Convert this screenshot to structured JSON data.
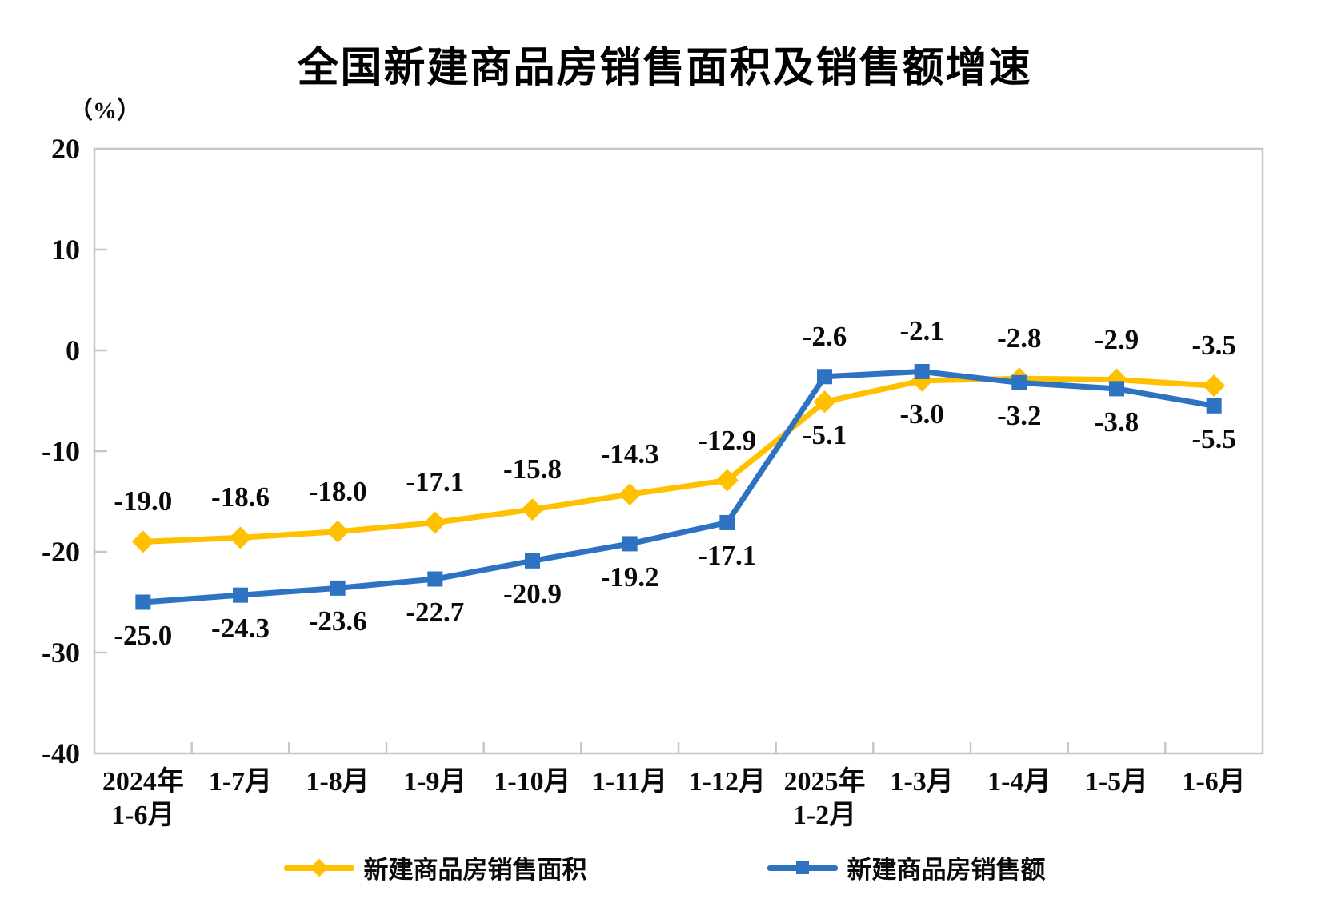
{
  "chart_data": {
    "type": "line",
    "title": "全国新建商品房销售面积及销售额增速",
    "unit_label": "（%）",
    "categories": [
      "2024年\n1-6月",
      "1-7月",
      "1-8月",
      "1-9月",
      "1-10月",
      "1-11月",
      "1-12月",
      "2025年\n1-2月",
      "1-3月",
      "1-4月",
      "1-5月",
      "1-6月"
    ],
    "ylim": [
      -40,
      20
    ],
    "yticks": [
      20,
      10,
      0,
      -10,
      -20,
      -30,
      -40
    ],
    "grid": false,
    "legend_position": "bottom",
    "axis_color": "#c6c6c6",
    "series": [
      {
        "key": "sales-area",
        "name": "新建商品房销售面积",
        "color": "#FFC000",
        "marker": "diamond",
        "values": [
          -19.0,
          -18.6,
          -18.0,
          -17.1,
          -15.8,
          -14.3,
          -12.9,
          -5.1,
          -3.0,
          -2.8,
          -2.9,
          -3.5
        ],
        "label_positions": [
          "above",
          "above",
          "above",
          "above",
          "above",
          "above",
          "above",
          "below",
          "below",
          "above",
          "above",
          "above"
        ]
      },
      {
        "key": "sales-value",
        "name": "新建商品房销售额",
        "color": "#2E72C2",
        "marker": "square",
        "values": [
          -25.0,
          -24.3,
          -23.6,
          -22.7,
          -20.9,
          -19.2,
          -17.1,
          -2.6,
          -2.1,
          -3.2,
          -3.8,
          -5.5
        ],
        "label_positions": [
          "below",
          "below",
          "below",
          "below",
          "below",
          "below",
          "below",
          "above",
          "above",
          "below",
          "below",
          "below"
        ]
      }
    ]
  }
}
